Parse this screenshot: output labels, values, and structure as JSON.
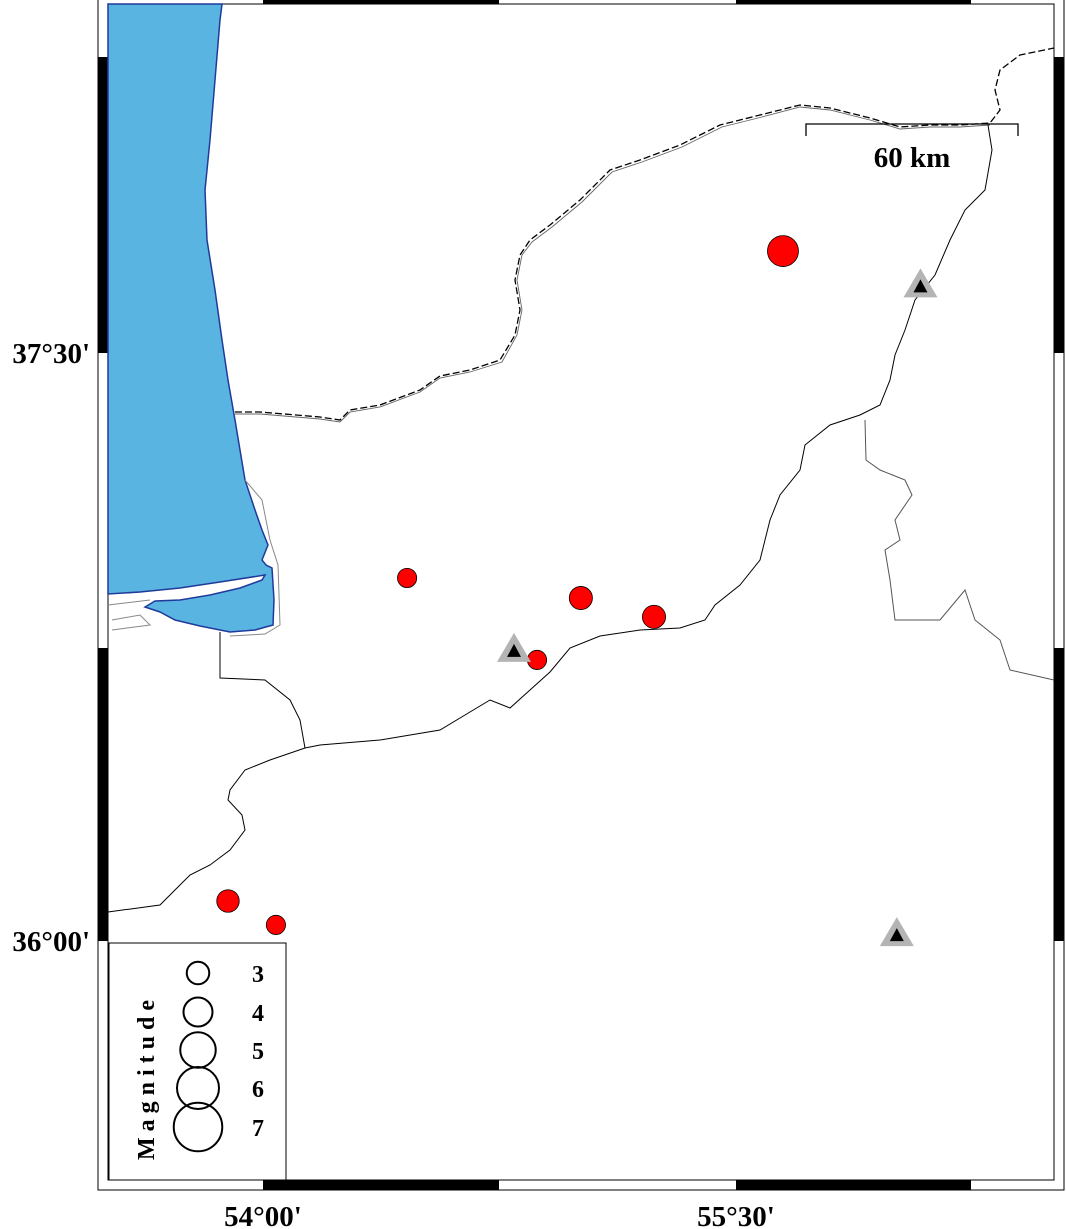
{
  "map": {
    "lon_range": [
      53.5,
      56.5
    ],
    "lat_range": [
      35.4,
      38.4
    ],
    "frame_ticks": {
      "lon_labels": [
        {
          "lon": 54.0,
          "label": "54°00'"
        },
        {
          "lon": 55.5,
          "label": "55°30'"
        }
      ],
      "lat_labels": [
        {
          "lat": 37.5,
          "label": "37°30'"
        },
        {
          "lat": 36.0,
          "label": "36°00'"
        }
      ]
    },
    "scale_bar": {
      "label": "60 km",
      "length_km": 60
    },
    "colors": {
      "sea": "#5ab4e2",
      "coast": "#1f3a9a",
      "event": "#ff0000",
      "station_outer": "#b4b4b4",
      "station_inner": "#000000"
    }
  },
  "events": [
    {
      "lon": 55.649,
      "lat": 37.76,
      "mag": 4.3
    },
    {
      "lon": 54.457,
      "lat": 36.926,
      "mag": 2.5
    },
    {
      "lon": 55.008,
      "lat": 36.875,
      "mag": 3.1
    },
    {
      "lon": 55.24,
      "lat": 36.827,
      "mag": 3.1
    },
    {
      "lon": 54.869,
      "lat": 36.717,
      "mag": 2.5
    },
    {
      "lon": 53.889,
      "lat": 36.102,
      "mag": 3.0
    },
    {
      "lon": 54.041,
      "lat": 36.041,
      "mag": 2.5
    }
  ],
  "stations": [
    {
      "lon": 56.085,
      "lat": 37.67
    },
    {
      "lon": 54.796,
      "lat": 36.74
    },
    {
      "lon": 56.01,
      "lat": 36.015
    }
  ],
  "legend": {
    "title": "Magnitude",
    "items": [
      {
        "mag": 3,
        "label": "3"
      },
      {
        "mag": 4,
        "label": "4"
      },
      {
        "mag": 5,
        "label": "5"
      },
      {
        "mag": 6,
        "label": "6"
      },
      {
        "mag": 7,
        "label": "7"
      }
    ]
  }
}
